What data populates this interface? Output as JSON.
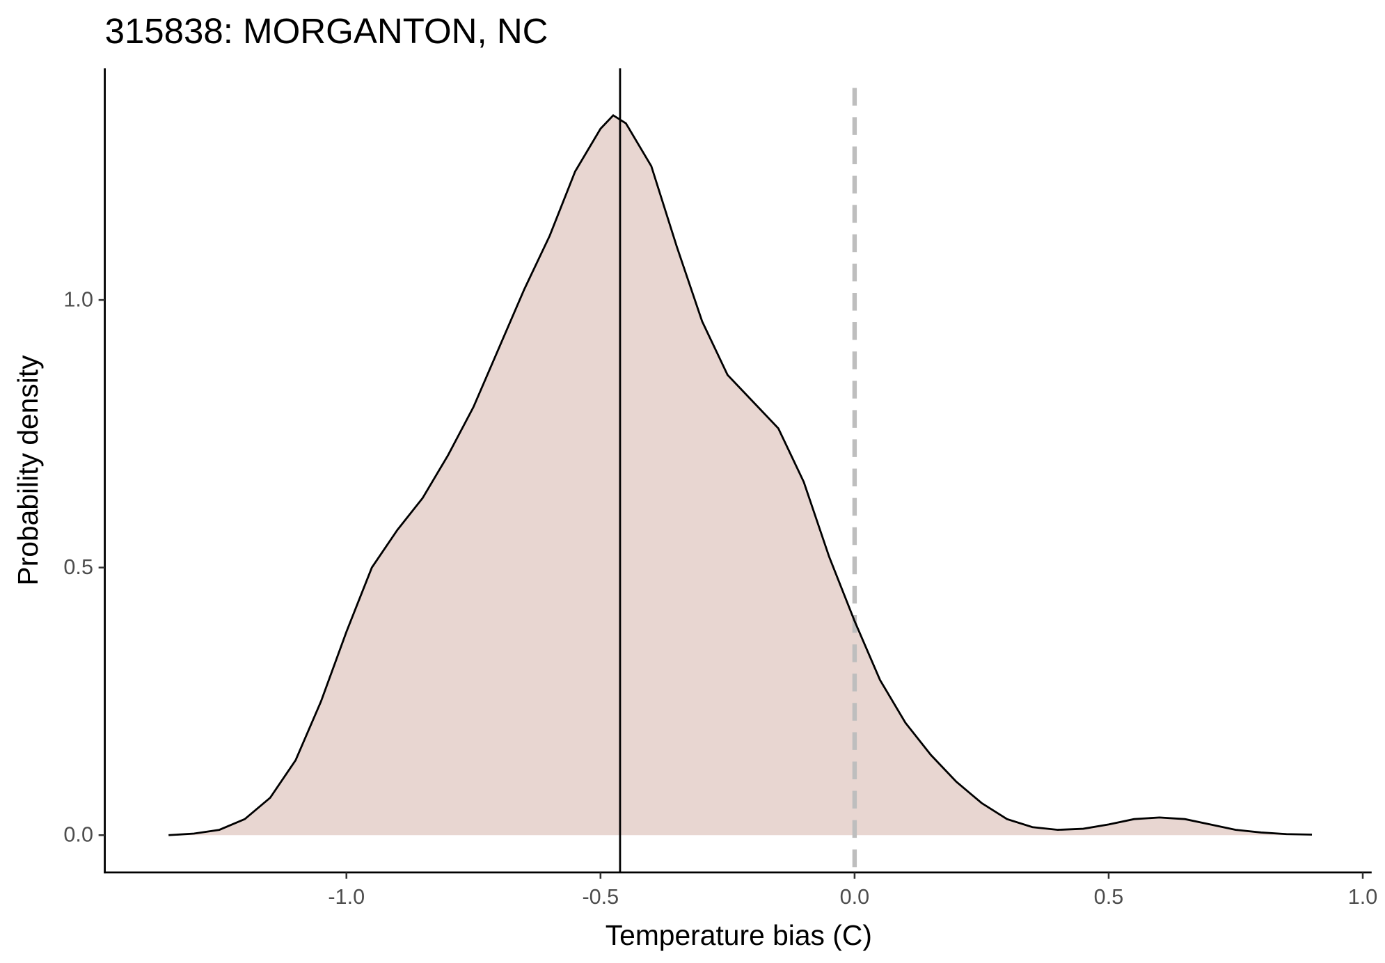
{
  "chart_data": {
    "type": "density",
    "title": "315838: MORGANTON, NC",
    "x_label": "Temperature bias (C)",
    "y_label": "Probability density",
    "x": [
      -1.35,
      -1.3,
      -1.25,
      -1.2,
      -1.15,
      -1.1,
      -1.05,
      -1.0,
      -0.95,
      -0.9,
      -0.85,
      -0.8,
      -0.75,
      -0.7,
      -0.65,
      -0.6,
      -0.55,
      -0.5,
      -0.475,
      -0.45,
      -0.4,
      -0.35,
      -0.3,
      -0.25,
      -0.2,
      -0.15,
      -0.1,
      -0.05,
      0.0,
      0.05,
      0.1,
      0.15,
      0.2,
      0.25,
      0.3,
      0.35,
      0.4,
      0.45,
      0.5,
      0.55,
      0.6,
      0.65,
      0.7,
      0.75,
      0.8,
      0.85,
      0.9
    ],
    "values": [
      0,
      0.003,
      0.01,
      0.03,
      0.07,
      0.14,
      0.25,
      0.38,
      0.5,
      0.57,
      0.63,
      0.71,
      0.8,
      0.91,
      1.02,
      1.12,
      1.24,
      1.32,
      1.345,
      1.33,
      1.25,
      1.1,
      0.96,
      0.86,
      0.81,
      0.76,
      0.66,
      0.52,
      0.4,
      0.29,
      0.21,
      0.15,
      0.1,
      0.06,
      0.03,
      0.015,
      0.01,
      0.012,
      0.02,
      0.03,
      0.033,
      0.03,
      0.02,
      0.01,
      0.005,
      0.002,
      0.001
    ],
    "fill_color": "#e8d6d1",
    "line_color": "#000000",
    "vlines": [
      {
        "x": -0.4615,
        "color": "#000000",
        "style": "solid"
      },
      {
        "x": 0,
        "color": "#bebebe",
        "style": "dashed"
      }
    ],
    "xlim": [
      -1.4755,
      1.0175
    ],
    "ylim": [
      -0.0697,
      1.4328
    ],
    "xticks": [
      {
        "value": -1,
        "label": "-1.0"
      },
      {
        "value": -0.5,
        "label": "-0.5"
      },
      {
        "value": 0,
        "label": "0.0"
      },
      0.5,
      {
        "value": 1,
        "label": "1.0"
      }
    ],
    "yticks": [
      {
        "value": 0,
        "label": "0.0"
      },
      0.5,
      {
        "value": 1,
        "label": "1.0"
      }
    ]
  }
}
